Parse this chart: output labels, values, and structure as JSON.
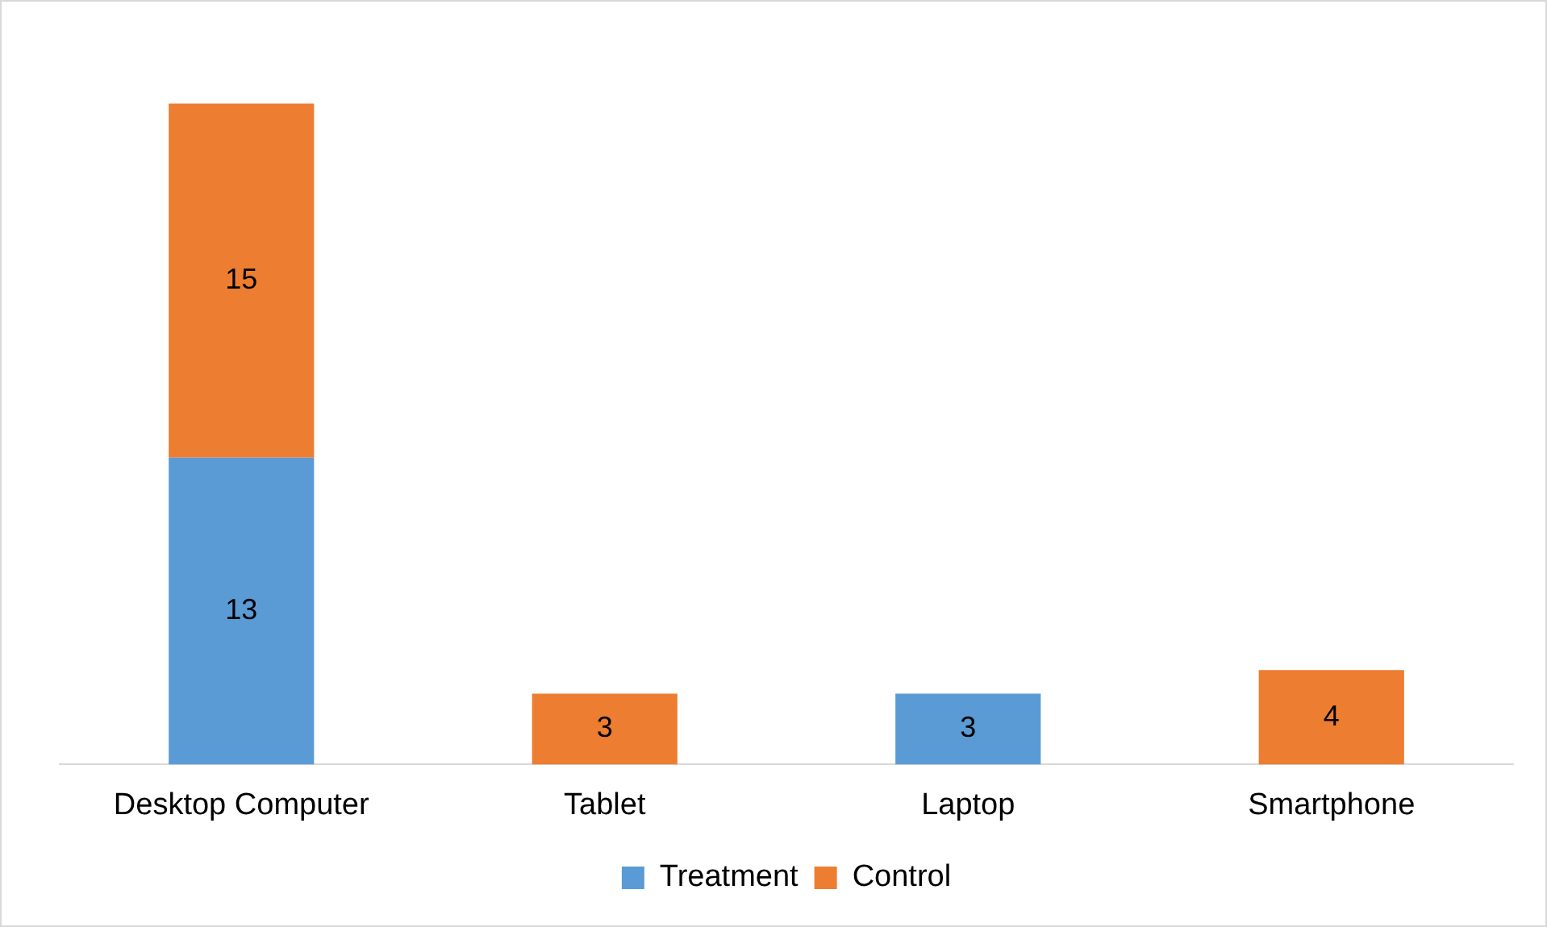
{
  "chart_data": {
    "type": "bar",
    "stacked": true,
    "data_labels": true,
    "legend": "bottom",
    "grid": false,
    "categories": [
      "Desktop Computer",
      "Tablet",
      "Laptop",
      "Smartphone"
    ],
    "series": [
      {
        "name": "Treatment",
        "color": "#5b9bd5",
        "values": [
          13,
          null,
          3,
          null
        ]
      },
      {
        "name": "Control",
        "color": "#ed7d31",
        "values": [
          15,
          3,
          null,
          4
        ]
      }
    ]
  }
}
